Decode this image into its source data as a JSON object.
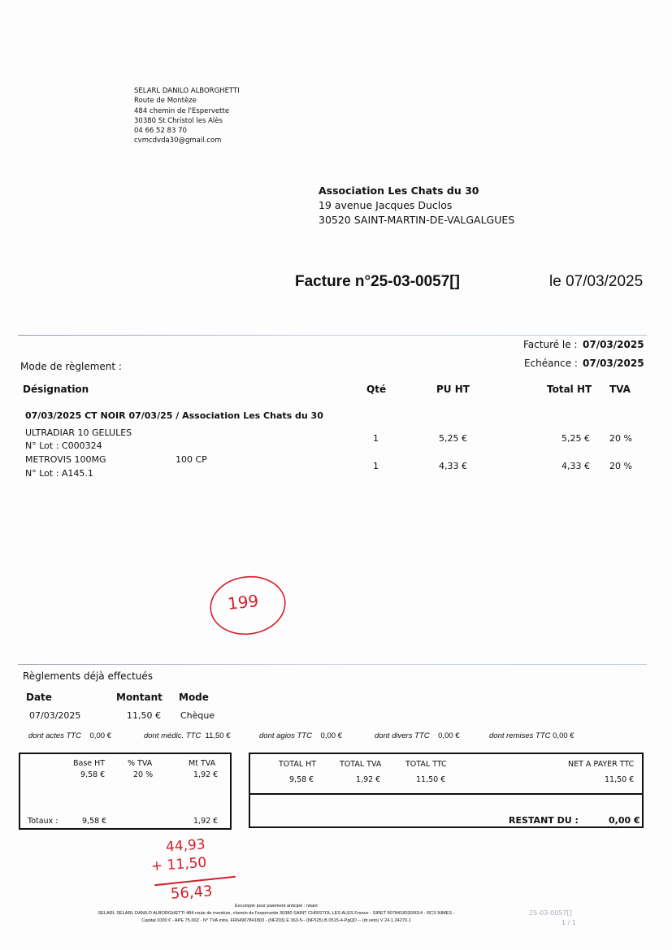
{
  "sender": {
    "lines": [
      "SELARL DANILO ALBORGHETTI",
      "Route de Montèze",
      "484 chemin de l'Espervette",
      "30380 St Christol les Alès",
      "04 66 52 83 70",
      "cvmcdvda30@gmail.com"
    ]
  },
  "recipient": {
    "name": "Association Les Chats du 30",
    "address1": "19 avenue Jacques Duclos",
    "address2": "30520 SAINT-MARTIN-DE-VALGALGUES"
  },
  "invoice": {
    "title": "Facture n°25-03-0057[]",
    "date": "le 07/03/2025",
    "facture_le_label": "Facturé le :",
    "facture_le": "07/03/2025",
    "echeance_label": "Echéance :",
    "echeance": "07/03/2025",
    "mode_reglement_label": "Mode de règlement :"
  },
  "table": {
    "headers": [
      "Désignation",
      "Qté",
      "PU HT",
      "Total HT",
      "TVA"
    ],
    "group": "07/03/2025 CT NOIR 07/03/25 / Association Les Chats du 30",
    "rows": [
      {
        "designation": "ULTRADIAR  10 GELULES",
        "extra": "",
        "lot": "N° Lot : C000324",
        "qte": "1",
        "pu": "5,25 €",
        "total": "5,25 €",
        "tva": "20 %"
      },
      {
        "designation": "METROVIS 100MG",
        "extra": "100 CP",
        "lot": "N° Lot : A145.1",
        "qte": "1",
        "pu": "4,33 €",
        "total": "4,33 €",
        "tva": "20 %"
      }
    ]
  },
  "annotations": {
    "circled": "199",
    "sum_line1": "44,93",
    "sum_line2": "+ 11,50",
    "sum_result": "56,43"
  },
  "payments": {
    "title": "Règlements déjà effectués",
    "headers": [
      "Date",
      "Montant",
      "Mode"
    ],
    "row": [
      "07/03/2025",
      "11,50 €",
      "Chèque"
    ],
    "breakdown": [
      {
        "label": "dont actes TTC",
        "value": "0,00 €"
      },
      {
        "label": "dont médic. TTC",
        "value": "11,50 €"
      },
      {
        "label": "dont agios TTC",
        "value": "0,00 €"
      },
      {
        "label": "dont divers TTC",
        "value": "0,00 €"
      },
      {
        "label": "dont remises TTC",
        "value": "0,00 €"
      }
    ]
  },
  "vat": {
    "headers": [
      "Base HT",
      "% TVA",
      "Mt TVA"
    ],
    "row": [
      "9,58 €",
      "20 %",
      "1,92 €"
    ],
    "totals_label": "Totaux :",
    "totals": [
      "9,58 €",
      "1,92 €"
    ]
  },
  "totals": {
    "headers": [
      "TOTAL HT",
      "TOTAL TVA",
      "TOTAL TTC",
      "NET A PAYER TTC"
    ],
    "values": [
      "9,58 €",
      "1,92 €",
      "11,50 €",
      "11,50 €"
    ],
    "restant_label": "RESTANT DU :",
    "restant": "0,00 €"
  },
  "footer": {
    "escompte": "Escompte pour paiement anticipé : néant",
    "line1": "SELARL SELARL DANILO ALBORGHETTI 484 route de montèze, chemin de l'espervette 30380 SAINT CHRISTOL LES ALES France - SIRET 90784180300014 - RCS NIMES -",
    "line2": "Capital 1000 € - APE 75.00Z - N° TVA intra. FR64907841803 - (NF203) E 363-5-- (NF525) B 0515-4-PgQD -- (dr.veto) V 24.1.24270.1",
    "ref": "25-03-0057[]",
    "page": "1 / 1"
  }
}
